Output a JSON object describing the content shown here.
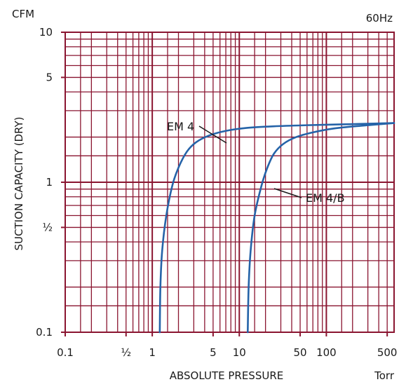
{
  "chart_data": {
    "type": "line",
    "frequency_label": "60Hz",
    "y_unit": "CFM",
    "x_unit": "Torr",
    "xlabel": "ABSOLUTE PRESSURE",
    "ylabel": "SUCTION CAPACITY (DRY)",
    "x_scale": "log",
    "y_scale": "log",
    "xlim": [
      0.1,
      600
    ],
    "ylim": [
      0.1,
      10
    ],
    "grid": true,
    "x_ticks": [
      {
        "value": 0.1,
        "label": "0.1"
      },
      {
        "value": 0.5,
        "label": "½"
      },
      {
        "value": 1,
        "label": "1"
      },
      {
        "value": 5,
        "label": "5"
      },
      {
        "value": 10,
        "label": "10"
      },
      {
        "value": 50,
        "label": "50"
      },
      {
        "value": 100,
        "label": "100"
      },
      {
        "value": 500,
        "label": "500"
      }
    ],
    "y_ticks": [
      {
        "value": 0.1,
        "label": "0.1"
      },
      {
        "value": 0.5,
        "label": "½"
      },
      {
        "value": 1,
        "label": "1"
      },
      {
        "value": 5,
        "label": "5"
      },
      {
        "value": 10,
        "label": "10"
      }
    ],
    "series": [
      {
        "name": "EM 4",
        "x": [
          1.22,
          1.24,
          1.3,
          1.45,
          1.7,
          2.0,
          2.5,
          3.2,
          4.5,
          7,
          12,
          25,
          60,
          150,
          350,
          600
        ],
        "y": [
          0.1,
          0.2,
          0.35,
          0.6,
          0.95,
          1.25,
          1.6,
          1.85,
          2.05,
          2.2,
          2.3,
          2.36,
          2.4,
          2.43,
          2.46,
          2.48
        ]
      },
      {
        "name": "EM 4/B",
        "x": [
          12.5,
          12.8,
          13.5,
          15,
          18,
          21,
          25,
          32,
          45,
          70,
          120,
          250,
          600
        ],
        "y": [
          0.1,
          0.2,
          0.35,
          0.6,
          0.95,
          1.25,
          1.55,
          1.8,
          2.0,
          2.15,
          2.28,
          2.38,
          2.48
        ]
      }
    ],
    "colors": {
      "grid": "#8a1530",
      "series": "#2563a8",
      "text": "#1a1a1a"
    }
  }
}
